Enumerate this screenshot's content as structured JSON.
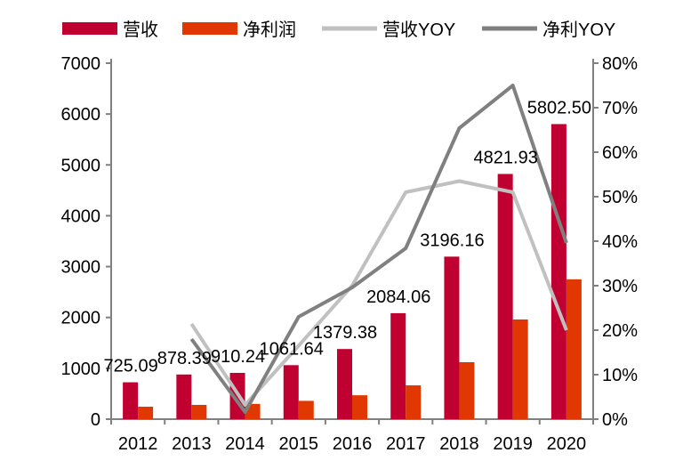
{
  "chart_data": {
    "type": "bar+line",
    "categories": [
      "2012",
      "2013",
      "2014",
      "2015",
      "2016",
      "2017",
      "2018",
      "2019",
      "2020"
    ],
    "bar_series": [
      {
        "name": "营收",
        "color": "#C00030",
        "values": [
          725.09,
          878.39,
          910.24,
          1061.64,
          1379.38,
          2084.06,
          3196.16,
          4821.93,
          5802.5
        ],
        "labels": [
          "725.09",
          "878.39",
          "910.24",
          "1061.64",
          "1379.38",
          "2084.06",
          "3196.16",
          "4821.93",
          "5802.50"
        ]
      },
      {
        "name": "净利润",
        "color": "#E03800",
        "values": [
          245,
          280,
          300,
          360,
          470,
          665,
          1120,
          1960,
          2750
        ]
      }
    ],
    "line_series": [
      {
        "name": "营收YOY",
        "color": "#C0C0C0",
        "values": [
          null,
          21.4,
          3.2,
          16.5,
          30.0,
          51.0,
          53.5,
          51.0,
          20.0
        ]
      },
      {
        "name": "净利YOY",
        "color": "#808080",
        "values": [
          null,
          18.0,
          1.6,
          23.0,
          29.6,
          38.4,
          65.4,
          75.0,
          39.6
        ]
      }
    ],
    "y_left": {
      "min": 0,
      "max": 7000,
      "ticks": [
        "0",
        "1000",
        "2000",
        "3000",
        "4000",
        "5000",
        "6000",
        "7000"
      ]
    },
    "y_right": {
      "min": 0,
      "max": 80,
      "unit": "%",
      "ticks": [
        "0%",
        "10%",
        "20%",
        "30%",
        "40%",
        "50%",
        "60%",
        "70%",
        "80%"
      ]
    },
    "axis_color": "#808080",
    "grid": false,
    "legend_position": "top"
  }
}
